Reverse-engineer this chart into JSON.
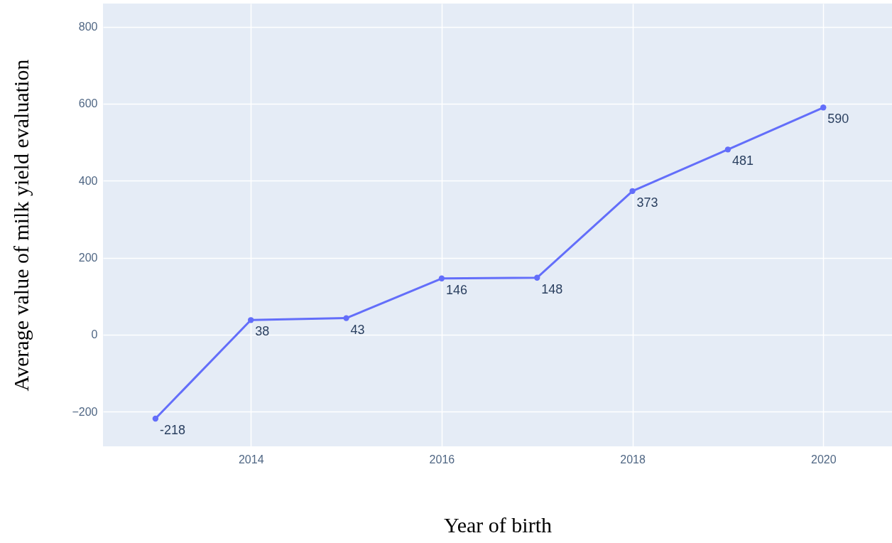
{
  "chart_data": {
    "type": "line",
    "xlabel": "Year of birth",
    "ylabel": "Average value of milk yield evaluation",
    "x": [
      2013,
      2014,
      2015,
      2016,
      2017,
      2018,
      2019,
      2020
    ],
    "series": [
      {
        "color": "#636efa",
        "values": [
          -218,
          38,
          43,
          146,
          148,
          373,
          481,
          590
        ]
      }
    ],
    "xlim": [
      2012.45,
      2020.72
    ],
    "xticks": [
      2014,
      2016,
      2018,
      2020
    ],
    "ylim": [
      -290,
      860
    ],
    "yticks": [
      -200,
      0,
      200,
      400,
      600,
      800
    ],
    "grid": true,
    "marker": "circle",
    "line_style": "solid",
    "data_labels": true,
    "legend": false
  }
}
